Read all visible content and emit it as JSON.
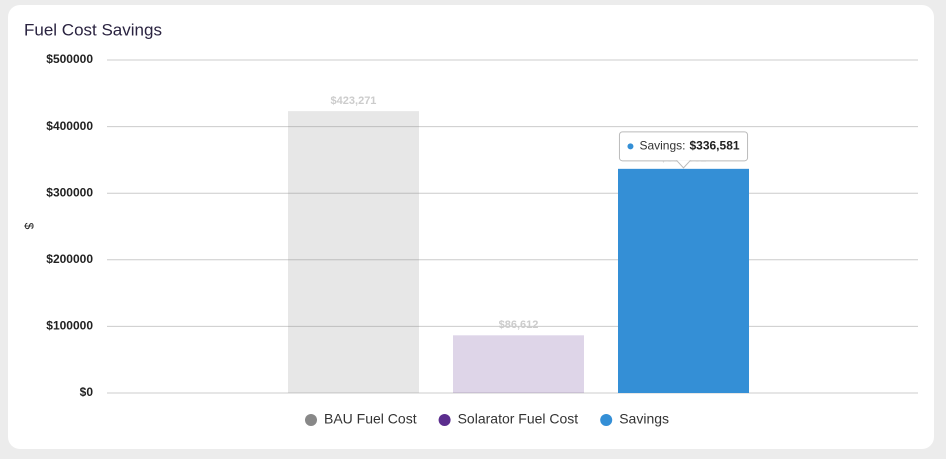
{
  "chart_data": {
    "type": "bar",
    "title": "Fuel Cost Savings",
    "y_label": "$",
    "categories": [
      null
    ],
    "series": [
      {
        "name": "BAU Fuel Cost",
        "color": "#888888",
        "values": [
          423271
        ],
        "value_labels": [
          "$423,271"
        ]
      },
      {
        "name": "Solarator Fuel Cost",
        "color": "#5b2d8e",
        "values": [
          86612
        ],
        "value_labels": [
          "$86,612"
        ]
      },
      {
        "name": "Savings",
        "color": "#348fd6",
        "values": [
          336581
        ],
        "value_labels": [
          "$336,581"
        ]
      }
    ],
    "hover_series": 2,
    "tooltip_label": "Savings:",
    "ylim": [
      0,
      500000
    ],
    "yticks": [
      {
        "value": 0,
        "label": "$0"
      },
      {
        "value": 100000,
        "label": "$100000"
      },
      {
        "value": 200000,
        "label": "$200000"
      },
      {
        "value": 300000,
        "label": "$300000"
      },
      {
        "value": 400000,
        "label": "$400000"
      },
      {
        "value": 500000,
        "label": "$500000"
      }
    ],
    "grid": true,
    "legend": "bottom"
  }
}
